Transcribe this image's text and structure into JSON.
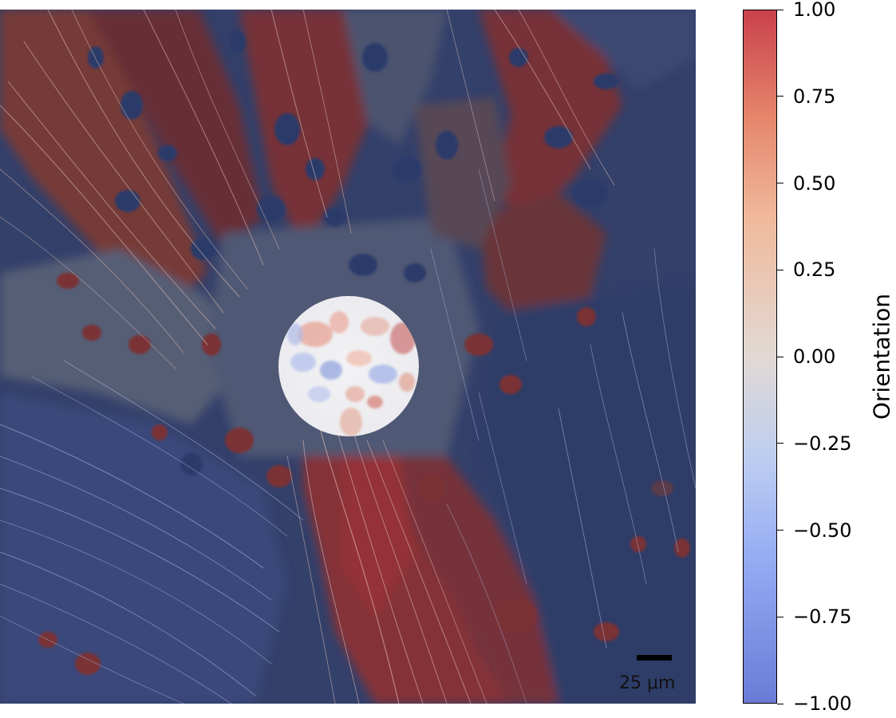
{
  "image": {
    "description_role": "fluorescence micrograph with orientation overlay",
    "colors": {
      "negative": "#3b4cc0",
      "neutral": "#dddddd",
      "positive": "#b40426",
      "dark_navy": "#2a3558",
      "dark_red": "#6e2a2a"
    }
  },
  "scale_bar": {
    "label": "25 μm"
  },
  "colorbar": {
    "label": "Orientation",
    "min": -1.0,
    "max": 1.0,
    "ticks": [
      {
        "value": 1.0,
        "label": "1.00"
      },
      {
        "value": 0.75,
        "label": "0.75"
      },
      {
        "value": 0.5,
        "label": "0.50"
      },
      {
        "value": 0.25,
        "label": "0.25"
      },
      {
        "value": 0.0,
        "label": "0.00"
      },
      {
        "value": -0.25,
        "label": "−0.25"
      },
      {
        "value": -0.5,
        "label": "−0.50"
      },
      {
        "value": -0.75,
        "label": "−0.75"
      },
      {
        "value": -1.0,
        "label": "−1.00"
      }
    ],
    "colormap": "coolwarm"
  }
}
